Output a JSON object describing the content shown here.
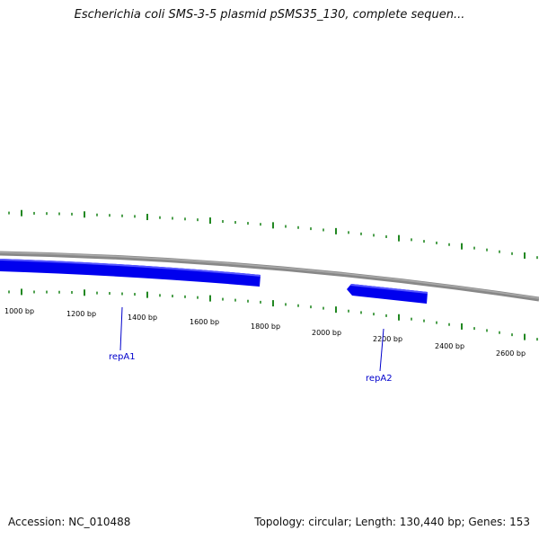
{
  "title": "Escherichia coli SMS-3-5 plasmid pSMS35_130, complete sequen...",
  "footer": {
    "accession": "Accession: NC_010488",
    "summary": "Topology: circular; Length: 130,440 bp; Genes: 153"
  },
  "colors": {
    "backbone": "#888888",
    "gene_fill": "#0000ee",
    "gene_highlight": "#5555ff",
    "tick": "#228822",
    "gene_label": "#0000cc",
    "ruler_label": "#000000"
  },
  "ruler": {
    "labels": [
      "1000 bp",
      "1200 bp",
      "1400 bp",
      "1600 bp",
      "1800 bp",
      "2000 bp",
      "2200 bp",
      "2400 bp",
      "2600 bp"
    ]
  },
  "genes": [
    {
      "name": "repA1",
      "strand": "forward"
    },
    {
      "name": "repA2",
      "strand": "reverse"
    }
  ]
}
